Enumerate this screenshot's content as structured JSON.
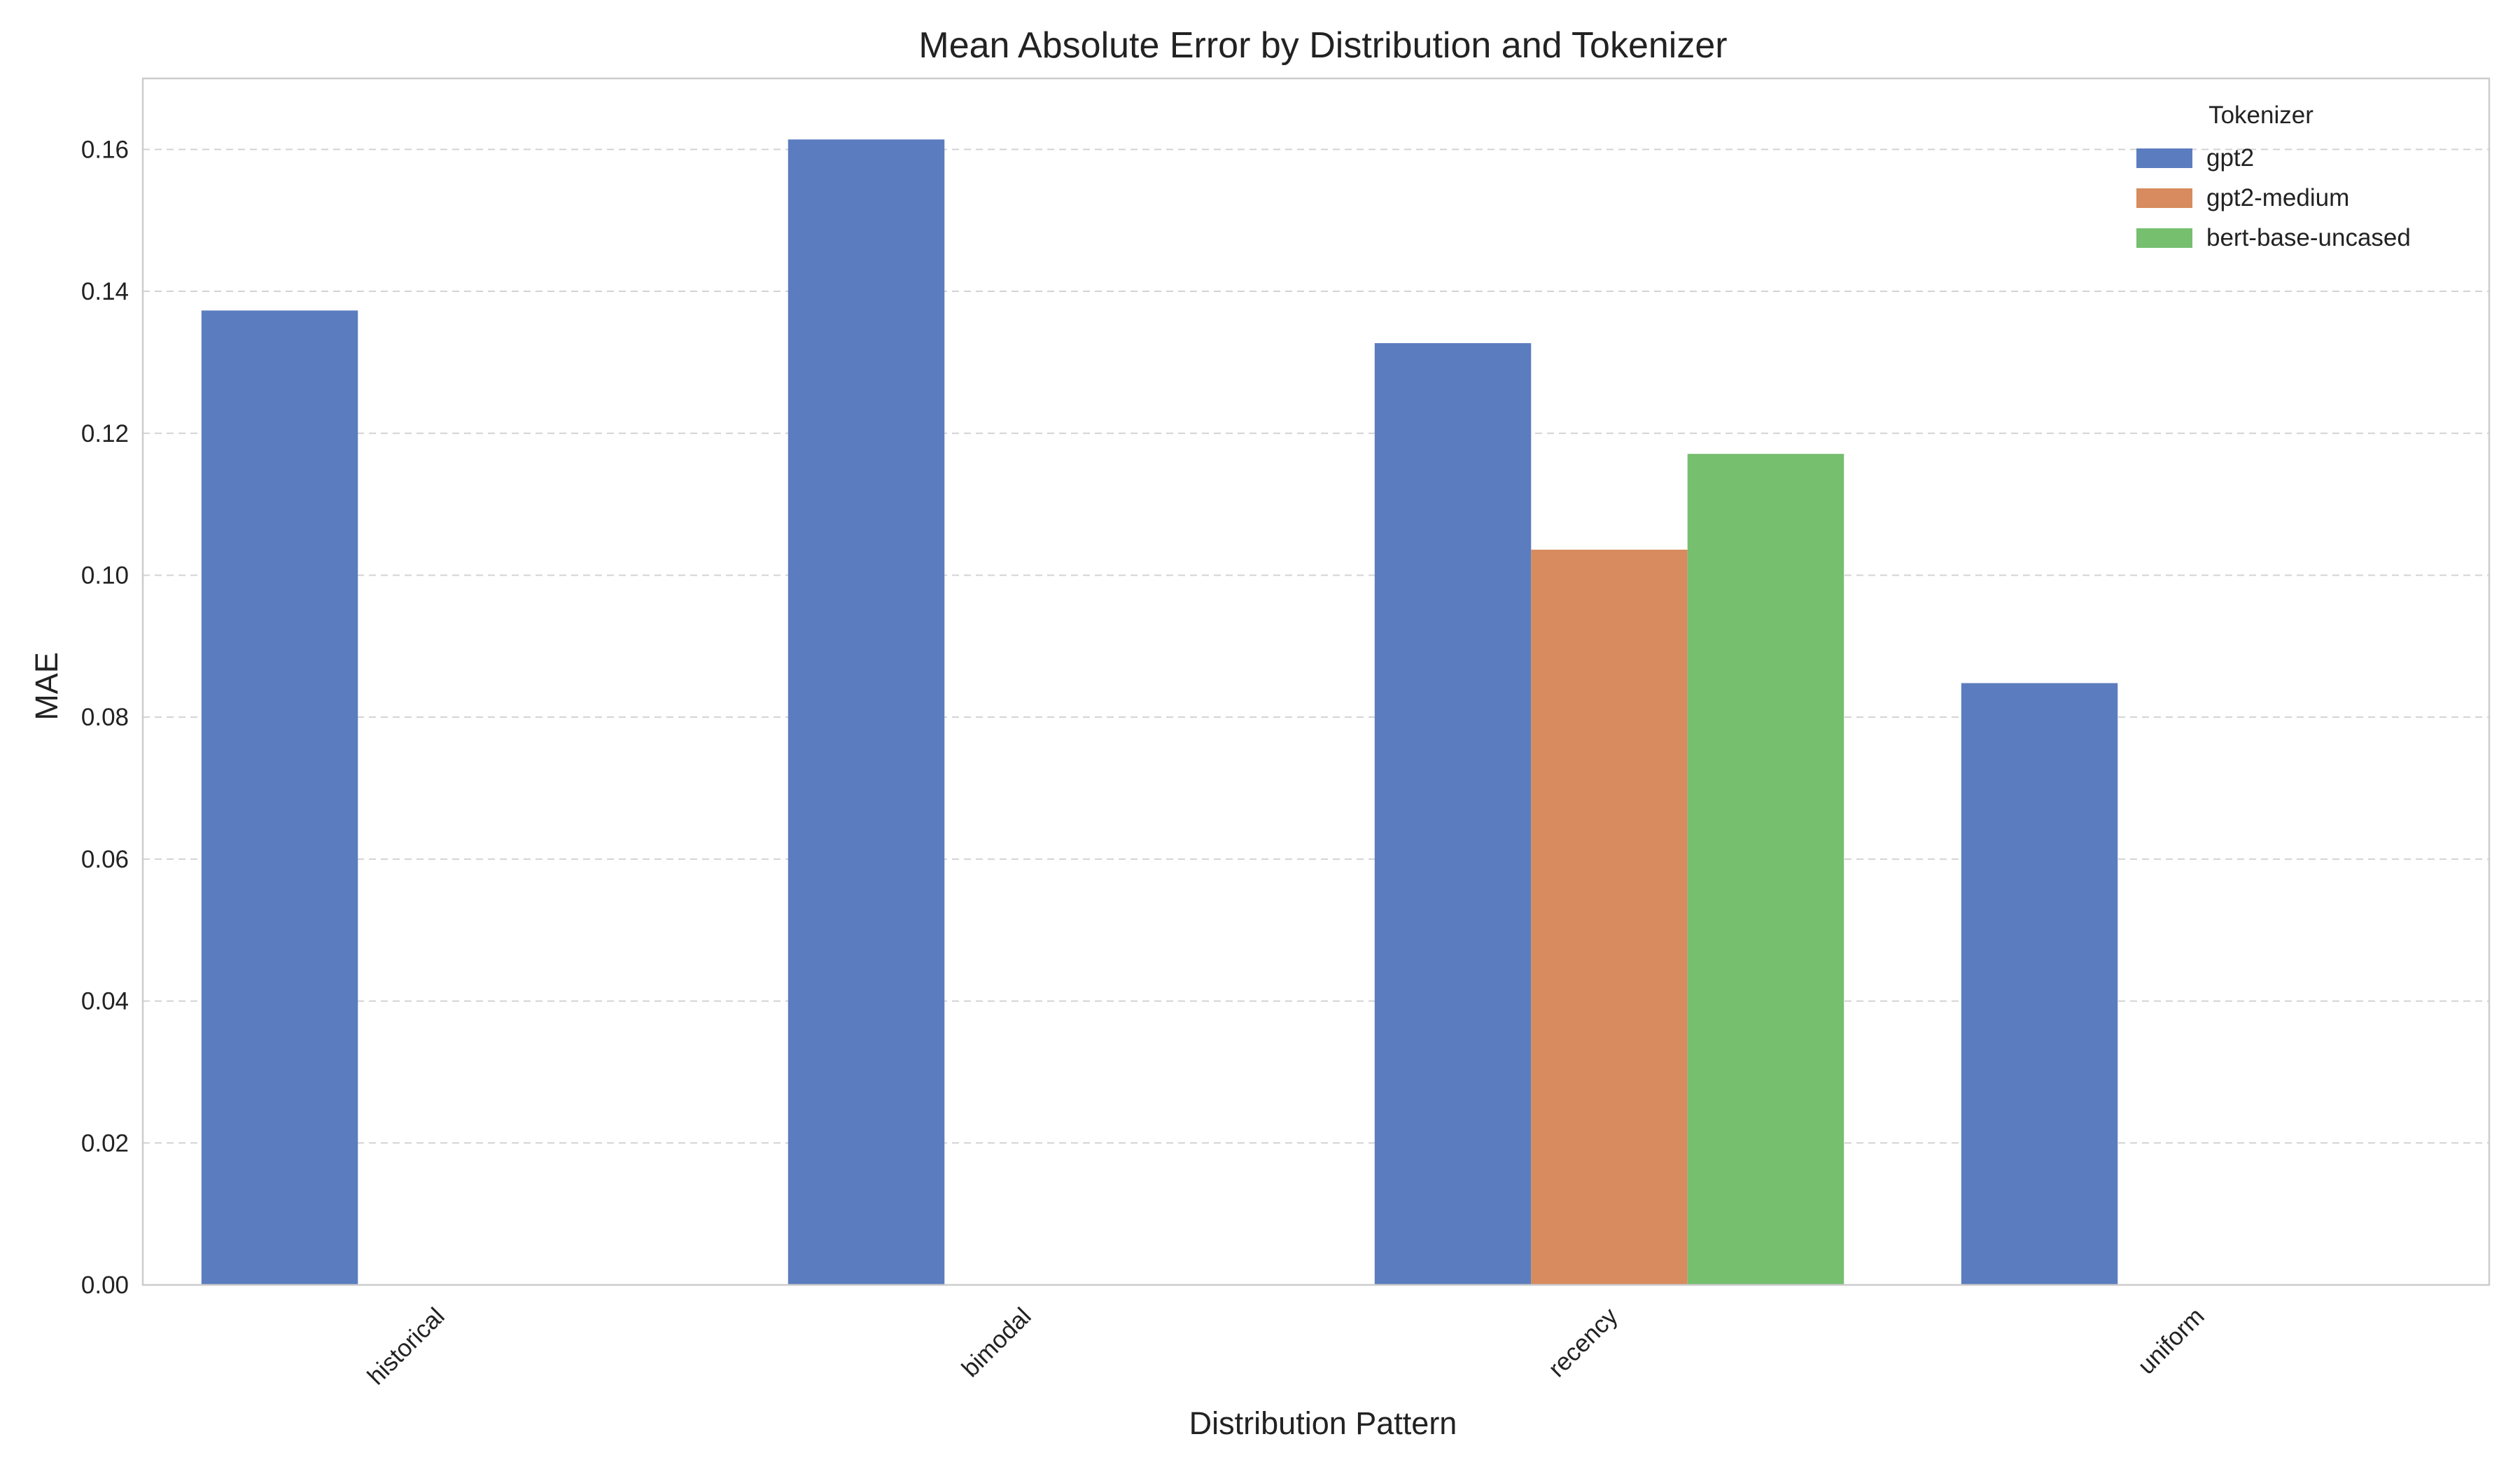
{
  "chart_data": {
    "type": "bar",
    "title": "Mean Absolute Error by Distribution and Tokenizer",
    "xlabel": "Distribution Pattern",
    "ylabel": "MAE",
    "categories": [
      "historical",
      "bimodal",
      "recency",
      "uniform"
    ],
    "series": [
      {
        "name": "gpt2",
        "color": "#5b7dbf",
        "values": [
          0.1373,
          0.1614,
          0.1327,
          0.0848
        ]
      },
      {
        "name": "gpt2-medium",
        "color": "#d78b5e",
        "values": [
          null,
          null,
          0.1036,
          null
        ]
      },
      {
        "name": "bert-base-uncased",
        "color": "#75bf6f",
        "values": [
          null,
          null,
          0.1171,
          null
        ]
      }
    ],
    "ylim": [
      0,
      0.17
    ],
    "yticks": [
      "0.00",
      "0.02",
      "0.04",
      "0.06",
      "0.08",
      "0.10",
      "0.12",
      "0.14",
      "0.16"
    ],
    "grid": true,
    "legend": {
      "title": "Tokenizer",
      "position": "top-right"
    }
  }
}
